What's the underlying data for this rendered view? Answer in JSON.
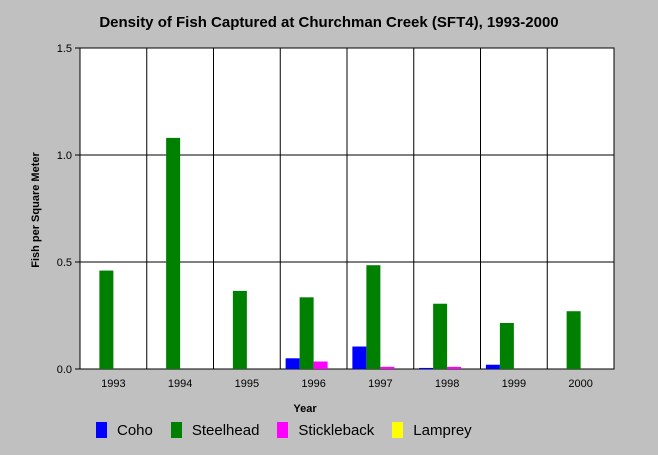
{
  "chart_data": {
    "type": "bar",
    "title": "Density of Fish Captured at Churchman Creek (SFT4), 1993-2000",
    "xlabel": "Year",
    "ylabel": "Fish per Square Meter",
    "categories": [
      "1993",
      "1994",
      "1995",
      "1996",
      "1997",
      "1998",
      "1999",
      "2000"
    ],
    "ylim": [
      0,
      1.5
    ],
    "yticks": [
      "0.0",
      "0.5",
      "1.0",
      "1.5"
    ],
    "yticks_values": [
      0,
      0.5,
      1.0,
      1.5
    ],
    "grid": true,
    "legend_position": "bottom",
    "series": [
      {
        "name": "Coho",
        "color": "#0000ff",
        "values": [
          0,
          0,
          0,
          0.05,
          0.105,
          0.005,
          0.02,
          0
        ]
      },
      {
        "name": "Steelhead",
        "color": "#008000",
        "values": [
          0.46,
          1.08,
          0.365,
          0.335,
          0.485,
          0.305,
          0.215,
          0.27
        ]
      },
      {
        "name": "Stickleback",
        "color": "#ff00ff",
        "values": [
          0,
          0,
          0,
          0.035,
          0.01,
          0.01,
          0,
          0
        ]
      },
      {
        "name": "Lamprey",
        "color": "#ffff00",
        "values": [
          0,
          0,
          0,
          0,
          0,
          0,
          0,
          0
        ]
      }
    ]
  }
}
